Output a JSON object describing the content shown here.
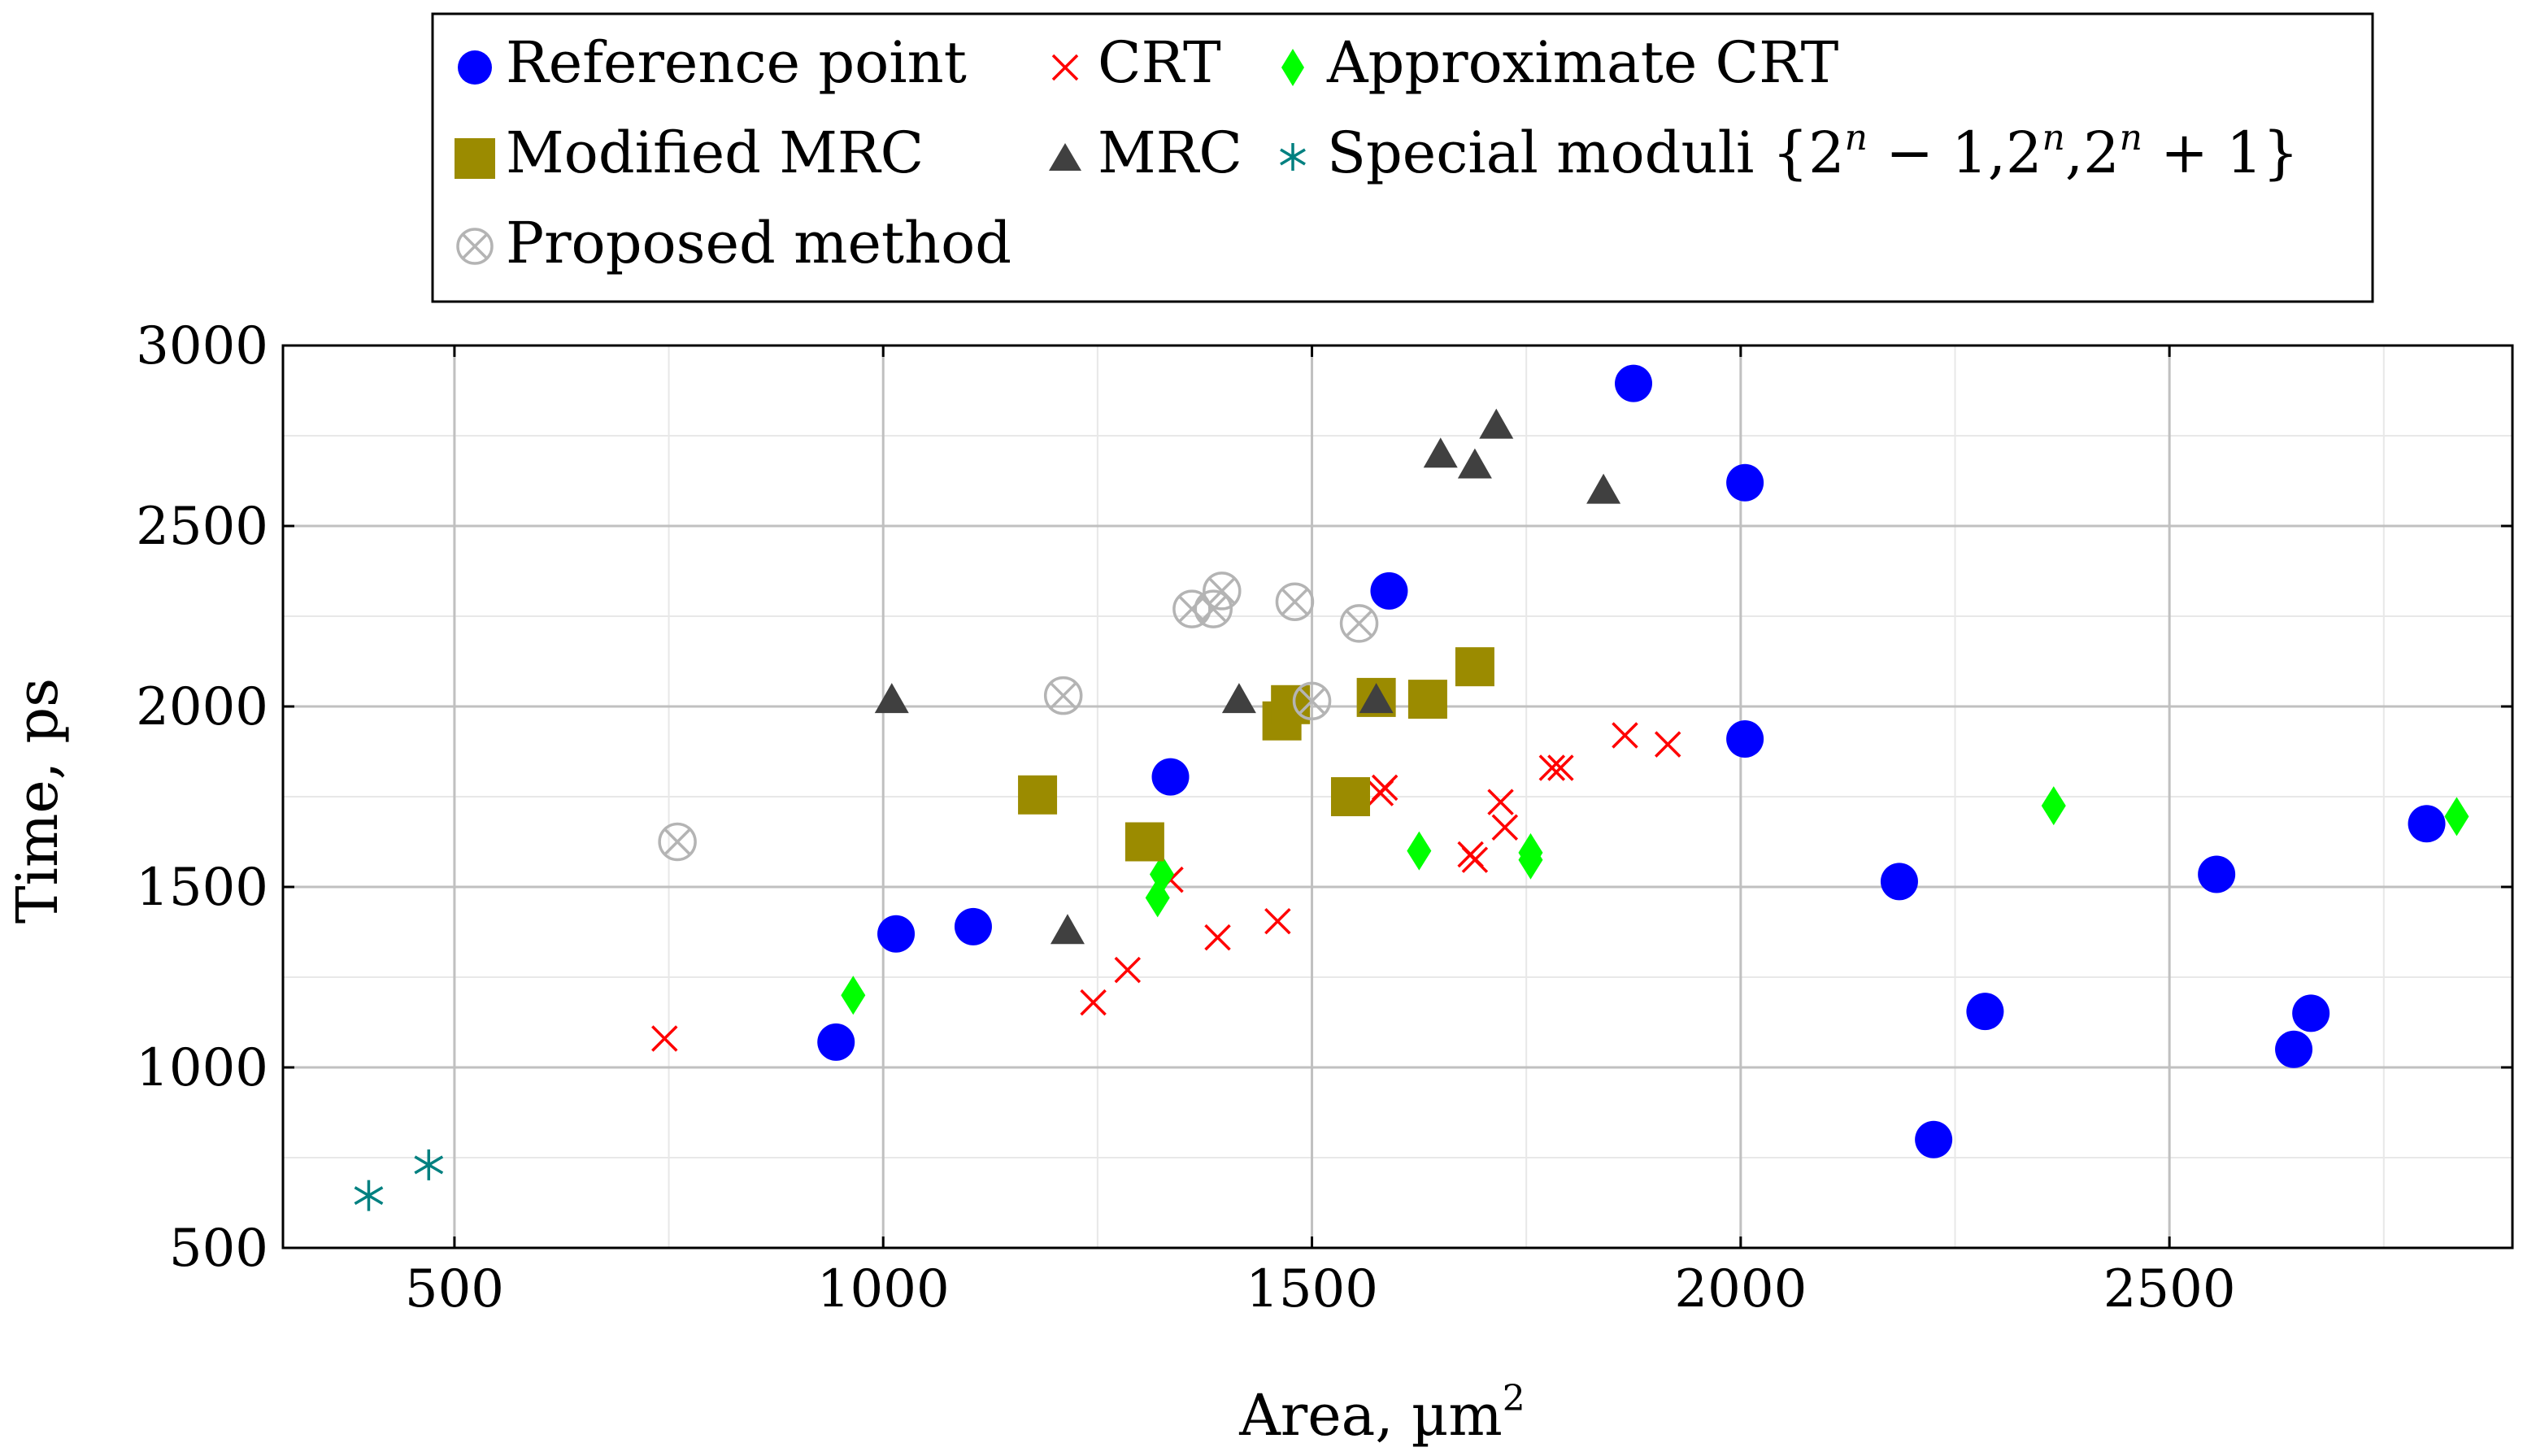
{
  "chart_data": {
    "type": "scatter",
    "title": "",
    "xlabel": "Area, µm",
    "xlabel_sup": "2",
    "ylabel": "Time, ps",
    "xlim": [
      300,
      2900
    ],
    "ylim": [
      500,
      3000
    ],
    "xticks": [
      500,
      1000,
      1500,
      2000,
      2500
    ],
    "yticks": [
      500,
      1000,
      1500,
      2000,
      2500,
      3000
    ],
    "x_minor_grid": [
      750,
      1250,
      1750,
      2250,
      2750
    ],
    "y_minor_grid": [
      750,
      1250,
      1750,
      2250,
      2750
    ],
    "grid": true,
    "legend_position": "top, above plot",
    "series": [
      {
        "name": "Reference point",
        "marker": "circle",
        "color": "#0000ff",
        "points": [
          [
            945,
            1070
          ],
          [
            1015,
            1370
          ],
          [
            1105,
            1390
          ],
          [
            1335,
            1805
          ],
          [
            1590,
            2320
          ],
          [
            1875,
            2895
          ],
          [
            2005,
            2620
          ],
          [
            2005,
            1910
          ],
          [
            2185,
            1515
          ],
          [
            2225,
            800
          ],
          [
            2285,
            1155
          ],
          [
            2555,
            1535
          ],
          [
            2645,
            1050
          ],
          [
            2665,
            1150
          ],
          [
            2800,
            1675
          ]
        ]
      },
      {
        "name": "CRT",
        "marker": "cross",
        "color": "#ff0000",
        "points": [
          [
            745,
            1080
          ],
          [
            1245,
            1180
          ],
          [
            1285,
            1270
          ],
          [
            1335,
            1520
          ],
          [
            1390,
            1360
          ],
          [
            1460,
            1405
          ],
          [
            1580,
            1760
          ],
          [
            1585,
            1775
          ],
          [
            1685,
            1590
          ],
          [
            1690,
            1575
          ],
          [
            1720,
            1735
          ],
          [
            1725,
            1665
          ],
          [
            1780,
            1830
          ],
          [
            1790,
            1830
          ],
          [
            1865,
            1920
          ],
          [
            1915,
            1895
          ]
        ]
      },
      {
        "name": "Approximate CRT",
        "marker": "diamond",
        "color": "#00ff00",
        "points": [
          [
            965,
            1200
          ],
          [
            1320,
            1470
          ],
          [
            1325,
            1535
          ],
          [
            1625,
            1600
          ],
          [
            1755,
            1595
          ],
          [
            1755,
            1575
          ],
          [
            2365,
            1725
          ],
          [
            2835,
            1695
          ]
        ]
      },
      {
        "name": "Modified MRC",
        "marker": "square",
        "color": "#9b8b00",
        "points": [
          [
            1180,
            1755
          ],
          [
            1305,
            1625
          ],
          [
            1465,
            1960
          ],
          [
            1475,
            2005
          ],
          [
            1545,
            1750
          ],
          [
            1575,
            2025
          ],
          [
            1635,
            2020
          ],
          [
            1690,
            2110
          ]
        ]
      },
      {
        "name": "MRC",
        "marker": "triangle",
        "color": "#404040",
        "points": [
          [
            1010,
            2020
          ],
          [
            1215,
            1380
          ],
          [
            1415,
            2020
          ],
          [
            1575,
            2020
          ],
          [
            1650,
            2700
          ],
          [
            1690,
            2670
          ],
          [
            1715,
            2780
          ],
          [
            1840,
            2600
          ]
        ]
      },
      {
        "name": "Special moduli {2^n − 1,2^n,2^n + 1}",
        "marker": "asterisk",
        "color": "#008080",
        "points": [
          [
            400,
            645
          ],
          [
            470,
            730
          ]
        ]
      },
      {
        "name": "Proposed method",
        "marker": "otimes",
        "color": "#b4b4b4",
        "points": [
          [
            760,
            1625
          ],
          [
            1210,
            2030
          ],
          [
            1360,
            2270
          ],
          [
            1385,
            2270
          ],
          [
            1395,
            2320
          ],
          [
            1480,
            2290
          ],
          [
            1500,
            2015
          ],
          [
            1555,
            2230
          ]
        ]
      }
    ]
  },
  "legend": {
    "items": [
      {
        "label": "Reference point"
      },
      {
        "label": "CRT"
      },
      {
        "label": "Approximate CRT"
      },
      {
        "label": "Modified MRC"
      },
      {
        "label": "MRC"
      },
      {
        "label": "Special moduli {2"
      },
      {
        "label": "Proposed method"
      }
    ],
    "special": {
      "base": "2",
      "exp": "n",
      "minus_one": " − 1,",
      "comma": ",",
      "plus_one": " + 1}"
    }
  }
}
